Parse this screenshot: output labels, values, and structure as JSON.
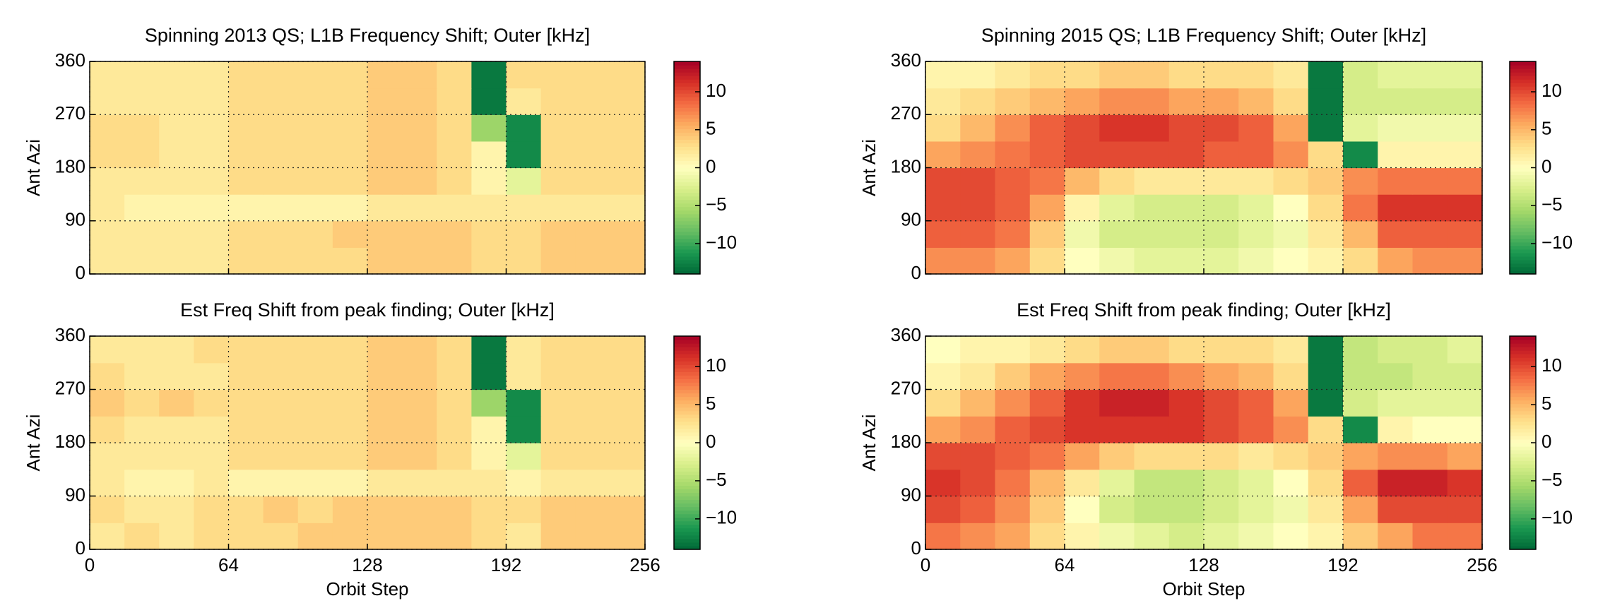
{
  "chart_data": [
    {
      "type": "heatmap",
      "title": "Spinning 2013 QS; L1B Frequency Shift; Outer [kHz]",
      "ylabel": "Ant Azi",
      "xlim": [
        0,
        256
      ],
      "ylim": [
        0,
        360
      ],
      "xticks": [
        0,
        64,
        128,
        192,
        256
      ],
      "show_xtick_labels": false,
      "yticks": [
        0,
        90,
        180,
        270,
        360
      ],
      "grid": true,
      "clim": [
        -14,
        14
      ],
      "cticks": [
        {
          "value": -10,
          "label": "−10"
        },
        {
          "value": -5,
          "label": "−5"
        },
        0,
        5,
        10
      ],
      "colormap": [
        "#006837",
        "#1a9850",
        "#66bd63",
        "#a6d96a",
        "#d9ef8b",
        "#ffffbf",
        "#fee08b",
        "#fdae61",
        "#f46d43",
        "#d73027",
        "#a50026"
      ],
      "xbins": [
        0,
        16,
        32,
        48,
        64,
        80,
        96,
        112,
        128,
        144,
        160,
        176,
        192,
        208,
        224,
        240,
        256
      ],
      "ybins": [
        0,
        45,
        90,
        135,
        180,
        225,
        270,
        315,
        360
      ],
      "values": [
        [
          2,
          2,
          2,
          2,
          3,
          3,
          3,
          3,
          4,
          4,
          4,
          3,
          3,
          4,
          4,
          4
        ],
        [
          2,
          2,
          2,
          2,
          3,
          3,
          3,
          4,
          4,
          4,
          4,
          3,
          3,
          4,
          4,
          4
        ],
        [
          2,
          1,
          1,
          1,
          1,
          1,
          1,
          1,
          2,
          2,
          2,
          2,
          2,
          2,
          2,
          2
        ],
        [
          2,
          2,
          2,
          2,
          3,
          3,
          3,
          3,
          4,
          4,
          3,
          1,
          -2,
          3,
          3,
          3
        ],
        [
          3,
          3,
          2,
          2,
          3,
          3,
          3,
          3,
          4,
          4,
          3,
          1,
          -12,
          3,
          3,
          3
        ],
        [
          3,
          3,
          2,
          2,
          3,
          3,
          3,
          3,
          4,
          4,
          3,
          -6,
          -12,
          3,
          3,
          3
        ],
        [
          2,
          2,
          2,
          2,
          3,
          3,
          3,
          3,
          4,
          4,
          3,
          -13,
          2,
          3,
          3,
          3
        ],
        [
          2,
          2,
          2,
          2,
          3,
          3,
          3,
          3,
          4,
          4,
          3,
          -13,
          3,
          3,
          3,
          3
        ]
      ]
    },
    {
      "type": "heatmap",
      "title": "Spinning 2015 QS; L1B Frequency Shift; Outer [kHz]",
      "ylabel": "Ant Azi",
      "xlim": [
        0,
        256
      ],
      "ylim": [
        0,
        360
      ],
      "xticks": [
        0,
        64,
        128,
        192,
        256
      ],
      "show_xtick_labels": false,
      "yticks": [
        0,
        90,
        180,
        270,
        360
      ],
      "grid": true,
      "clim": [
        -14,
        14
      ],
      "cticks": [
        {
          "value": -10,
          "label": "−10"
        },
        {
          "value": -5,
          "label": "−5"
        },
        0,
        5,
        10
      ],
      "colormap": [
        "#006837",
        "#1a9850",
        "#66bd63",
        "#a6d96a",
        "#d9ef8b",
        "#ffffbf",
        "#fee08b",
        "#fdae61",
        "#f46d43",
        "#d73027",
        "#a50026"
      ],
      "xbins": [
        0,
        16,
        32,
        48,
        64,
        80,
        96,
        112,
        128,
        144,
        160,
        176,
        192,
        208,
        224,
        240,
        256
      ],
      "ybins": [
        0,
        45,
        90,
        135,
        180,
        225,
        270,
        315,
        360
      ],
      "values": [
        [
          7,
          7,
          6,
          3,
          0,
          -1,
          -2,
          -2,
          -2,
          -1,
          0,
          1,
          3,
          6,
          7,
          7
        ],
        [
          9,
          9,
          8,
          4,
          -1,
          -3,
          -3,
          -3,
          -3,
          -2,
          -1,
          2,
          5,
          9,
          9,
          9
        ],
        [
          10,
          10,
          9,
          6,
          1,
          -2,
          -3,
          -3,
          -3,
          -2,
          0,
          3,
          8,
          11,
          11,
          11
        ],
        [
          10,
          10,
          9,
          8,
          5,
          3,
          2,
          2,
          2,
          2,
          3,
          4,
          7,
          8,
          8,
          8
        ],
        [
          6,
          7,
          8,
          9,
          10,
          10,
          10,
          10,
          9,
          9,
          7,
          3,
          -12,
          1,
          1,
          1
        ],
        [
          3,
          5,
          7,
          9,
          10,
          11,
          11,
          10,
          10,
          9,
          6,
          -13,
          -2,
          -1,
          -1,
          -1
        ],
        [
          2,
          3,
          4,
          5,
          6,
          7,
          7,
          6,
          6,
          5,
          3,
          -13,
          -3,
          -3,
          -3,
          -3
        ],
        [
          1,
          1,
          2,
          3,
          3,
          4,
          4,
          3,
          3,
          3,
          2,
          -13,
          -3,
          -2,
          -2,
          -2
        ]
      ]
    },
    {
      "type": "heatmap",
      "title": "Est Freq Shift from peak finding; Outer [kHz]",
      "ylabel": "Ant Azi",
      "xlabel": "Orbit Step",
      "xlim": [
        0,
        256
      ],
      "ylim": [
        0,
        360
      ],
      "xticks": [
        0,
        64,
        128,
        192,
        256
      ],
      "show_xtick_labels": true,
      "yticks": [
        0,
        90,
        180,
        270,
        360
      ],
      "grid": true,
      "clim": [
        -14,
        14
      ],
      "cticks": [
        {
          "value": -10,
          "label": "−10"
        },
        {
          "value": -5,
          "label": "−5"
        },
        0,
        5,
        10
      ],
      "colormap": [
        "#006837",
        "#1a9850",
        "#66bd63",
        "#a6d96a",
        "#d9ef8b",
        "#ffffbf",
        "#fee08b",
        "#fdae61",
        "#f46d43",
        "#d73027",
        "#a50026"
      ],
      "xbins": [
        0,
        16,
        32,
        48,
        64,
        80,
        96,
        112,
        128,
        144,
        160,
        176,
        192,
        208,
        224,
        240,
        256
      ],
      "ybins": [
        0,
        45,
        90,
        135,
        180,
        225,
        270,
        315,
        360
      ],
      "values": [
        [
          2,
          3,
          2,
          3,
          3,
          3,
          4,
          4,
          4,
          4,
          4,
          3,
          2,
          4,
          4,
          4
        ],
        [
          3,
          2,
          2,
          3,
          3,
          4,
          3,
          4,
          4,
          4,
          4,
          3,
          3,
          4,
          4,
          4
        ],
        [
          2,
          1,
          1,
          2,
          1,
          1,
          1,
          1,
          2,
          2,
          2,
          2,
          1,
          2,
          2,
          2
        ],
        [
          2,
          2,
          2,
          2,
          3,
          3,
          3,
          3,
          4,
          4,
          3,
          1,
          -2,
          3,
          3,
          3
        ],
        [
          3,
          2,
          2,
          2,
          3,
          3,
          3,
          3,
          4,
          4,
          3,
          1,
          -12,
          3,
          3,
          3
        ],
        [
          4,
          3,
          4,
          3,
          3,
          3,
          3,
          3,
          4,
          4,
          3,
          -6,
          -12,
          3,
          3,
          3
        ],
        [
          3,
          2,
          2,
          2,
          3,
          3,
          3,
          3,
          4,
          4,
          3,
          -13,
          2,
          3,
          3,
          3
        ],
        [
          2,
          2,
          2,
          3,
          3,
          3,
          3,
          3,
          4,
          4,
          3,
          -13,
          2,
          3,
          3,
          3
        ]
      ]
    },
    {
      "type": "heatmap",
      "title": "Est Freq Shift from peak finding; Outer [kHz]",
      "ylabel": "Ant Azi",
      "xlabel": "Orbit Step",
      "xlim": [
        0,
        256
      ],
      "ylim": [
        0,
        360
      ],
      "xticks": [
        0,
        64,
        128,
        192,
        256
      ],
      "show_xtick_labels": true,
      "yticks": [
        0,
        90,
        180,
        270,
        360
      ],
      "grid": true,
      "clim": [
        -14,
        14
      ],
      "cticks": [
        {
          "value": -10,
          "label": "−10"
        },
        {
          "value": -5,
          "label": "−5"
        },
        0,
        5,
        10
      ],
      "colormap": [
        "#006837",
        "#1a9850",
        "#66bd63",
        "#a6d96a",
        "#d9ef8b",
        "#ffffbf",
        "#fee08b",
        "#fdae61",
        "#f46d43",
        "#d73027",
        "#a50026"
      ],
      "xbins": [
        0,
        16,
        32,
        48,
        64,
        80,
        96,
        112,
        128,
        144,
        160,
        176,
        192,
        208,
        224,
        240,
        256
      ],
      "ybins": [
        0,
        45,
        90,
        135,
        180,
        225,
        270,
        315,
        360
      ],
      "values": [
        [
          8,
          7,
          6,
          3,
          1,
          -1,
          -2,
          -3,
          -2,
          -1,
          0,
          1,
          4,
          6,
          8,
          8
        ],
        [
          10,
          9,
          7,
          4,
          0,
          -3,
          -4,
          -4,
          -3,
          -2,
          -1,
          2,
          6,
          10,
          10,
          10
        ],
        [
          11,
          10,
          8,
          5,
          2,
          -2,
          -4,
          -4,
          -3,
          -2,
          0,
          3,
          9,
          12,
          12,
          11
        ],
        [
          10,
          10,
          9,
          8,
          6,
          4,
          3,
          3,
          3,
          2,
          3,
          4,
          6,
          7,
          7,
          6
        ],
        [
          6,
          7,
          9,
          10,
          11,
          11,
          11,
          11,
          10,
          9,
          7,
          3,
          -12,
          1,
          0,
          0
        ],
        [
          3,
          5,
          7,
          9,
          11,
          12,
          12,
          11,
          10,
          9,
          6,
          -13,
          -3,
          -2,
          -2,
          -2
        ],
        [
          1,
          2,
          4,
          6,
          7,
          8,
          8,
          7,
          6,
          5,
          3,
          -13,
          -4,
          -4,
          -3,
          -3
        ],
        [
          0,
          1,
          1,
          2,
          3,
          4,
          4,
          3,
          3,
          3,
          2,
          -13,
          -4,
          -3,
          -3,
          -2
        ]
      ]
    }
  ]
}
